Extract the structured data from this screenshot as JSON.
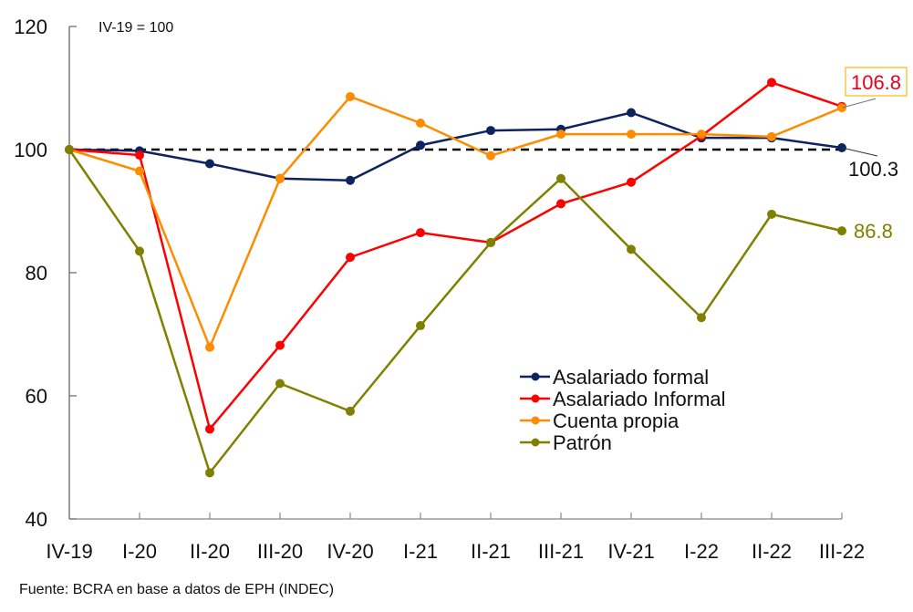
{
  "chart_data": {
    "type": "line",
    "title": "",
    "note": "IV-19 = 100",
    "xlabel": "",
    "ylabel": "",
    "ylim": [
      40,
      120
    ],
    "yticks": [
      40,
      60,
      80,
      100,
      120
    ],
    "grid": false,
    "reference_line": {
      "value": 100,
      "style": "dashed",
      "color": "#000000"
    },
    "categories": [
      "IV-19",
      "I-20",
      "II-20",
      "III-20",
      "IV-20",
      "I-21",
      "II-21",
      "III-21",
      "IV-21",
      "I-22",
      "II-22",
      "III-22"
    ],
    "legend_position": "center-right",
    "series": [
      {
        "name": "Asalariado formal",
        "color": "#0d2461",
        "values": [
          100,
          99.8,
          97.7,
          95.3,
          95.0,
          100.7,
          103.1,
          103.3,
          106.0,
          101.9,
          101.9,
          100.3
        ]
      },
      {
        "name": "Asalariado Informal",
        "color": "#ff0000",
        "values": [
          100,
          99.1,
          54.6,
          68.2,
          82.5,
          86.5,
          84.9,
          91.2,
          94.7,
          102.2,
          110.9,
          107.0
        ]
      },
      {
        "name": "Cuenta propia",
        "color": "#ff8c00",
        "values": [
          100,
          96.5,
          67.9,
          95.3,
          108.6,
          104.3,
          99.0,
          102.5,
          102.5,
          102.5,
          102.1,
          106.8
        ]
      },
      {
        "name": "Patrón",
        "color": "#808000",
        "values": [
          100,
          83.5,
          47.5,
          62.0,
          57.5,
          71.4,
          84.9,
          95.3,
          83.8,
          72.7,
          89.5,
          86.8
        ]
      }
    ],
    "annotations": [
      {
        "text": "106.8",
        "series": "Cuenta propia",
        "category": "III-22",
        "text_color": "#e8001c",
        "box_border": "#f5c842",
        "leader_line": true
      },
      {
        "text": "100.3",
        "series": "Asalariado formal",
        "category": "III-22",
        "text_color": "#111111",
        "leader_line": true
      },
      {
        "text": "86.8",
        "series": "Patrón",
        "category": "III-22",
        "text_color": "#808000",
        "leader_line": false
      }
    ]
  },
  "source": "Fuente: BCRA en base a datos de EPH (INDEC)"
}
